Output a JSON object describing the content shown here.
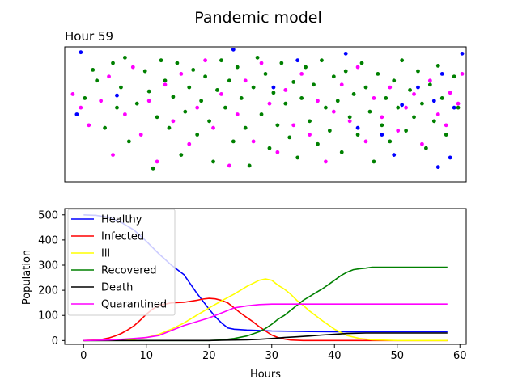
{
  "title": "Pandemic model",
  "chart_data": [
    {
      "type": "scatter",
      "title": "Hour 59",
      "xlim": [
        0,
        100
      ],
      "ylim": [
        0,
        100
      ],
      "axis_ticks": false,
      "groups": [
        {
          "name": "green",
          "color": "#008000",
          "points": [
            [
              5,
              62
            ],
            [
              7,
              83
            ],
            [
              8,
              75
            ],
            [
              10,
              40
            ],
            [
              12,
              88
            ],
            [
              13,
              55
            ],
            [
              14,
              70
            ],
            [
              15,
              92
            ],
            [
              16,
              30
            ],
            [
              18,
              58
            ],
            [
              20,
              82
            ],
            [
              21,
              67
            ],
            [
              22,
              10
            ],
            [
              23,
              48
            ],
            [
              24,
              90
            ],
            [
              25,
              75
            ],
            [
              26,
              40
            ],
            [
              27,
              63
            ],
            [
              28,
              88
            ],
            [
              29,
              20
            ],
            [
              30,
              52
            ],
            [
              31,
              70
            ],
            [
              32,
              83
            ],
            [
              33,
              35
            ],
            [
              34,
              60
            ],
            [
              35,
              78
            ],
            [
              36,
              45
            ],
            [
              37,
              15
            ],
            [
              38,
              68
            ],
            [
              39,
              90
            ],
            [
              40,
              55
            ],
            [
              41,
              75
            ],
            [
              42,
              30
            ],
            [
              43,
              85
            ],
            [
              44,
              62
            ],
            [
              45,
              40
            ],
            [
              46,
              12
            ],
            [
              47,
              70
            ],
            [
              48,
              92
            ],
            [
              49,
              50
            ],
            [
              50,
              80
            ],
            [
              51,
              25
            ],
            [
              52,
              66
            ],
            [
              53,
              42
            ],
            [
              54,
              88
            ],
            [
              55,
              58
            ],
            [
              56,
              33
            ],
            [
              57,
              74
            ],
            [
              58,
              18
            ],
            [
              59,
              62
            ],
            [
              60,
              85
            ],
            [
              61,
              45
            ],
            [
              62,
              72
            ],
            [
              63,
              28
            ],
            [
              64,
              90
            ],
            [
              65,
              55
            ],
            [
              66,
              38
            ],
            [
              67,
              78
            ],
            [
              68,
              60
            ],
            [
              69,
              22
            ],
            [
              70,
              82
            ],
            [
              71,
              48
            ],
            [
              72,
              65
            ],
            [
              73,
              35
            ],
            [
              74,
              88
            ],
            [
              75,
              70
            ],
            [
              76,
              52
            ],
            [
              77,
              15
            ],
            [
              78,
              80
            ],
            [
              79,
              42
            ],
            [
              80,
              62
            ],
            [
              81,
              30
            ],
            [
              82,
              75
            ],
            [
              83,
              55
            ],
            [
              84,
              90
            ],
            [
              85,
              38
            ],
            [
              86,
              68
            ],
            [
              87,
              48
            ],
            [
              88,
              82
            ],
            [
              89,
              58
            ],
            [
              90,
              25
            ],
            [
              91,
              72
            ],
            [
              92,
              45
            ],
            [
              93,
              86
            ],
            [
              94,
              62
            ],
            [
              95,
              35
            ],
            [
              97,
              78
            ],
            [
              98,
              55
            ]
          ]
        },
        {
          "name": "magenta",
          "color": "#ff00ff",
          "points": [
            [
              2,
              65
            ],
            [
              4,
              55
            ],
            [
              6,
              42
            ],
            [
              9,
              60
            ],
            [
              11,
              78
            ],
            [
              12,
              20
            ],
            [
              15,
              50
            ],
            [
              17,
              85
            ],
            [
              19,
              35
            ],
            [
              21,
              60
            ],
            [
              23,
              15
            ],
            [
              25,
              72
            ],
            [
              27,
              45
            ],
            [
              29,
              80
            ],
            [
              31,
              28
            ],
            [
              33,
              55
            ],
            [
              35,
              90
            ],
            [
              37,
              40
            ],
            [
              39,
              65
            ],
            [
              41,
              12
            ],
            [
              43,
              50
            ],
            [
              45,
              75
            ],
            [
              47,
              30
            ],
            [
              49,
              88
            ],
            [
              51,
              58
            ],
            [
              53,
              22
            ],
            [
              55,
              68
            ],
            [
              57,
              42
            ],
            [
              59,
              80
            ],
            [
              61,
              35
            ],
            [
              63,
              60
            ],
            [
              65,
              15
            ],
            [
              67,
              52
            ],
            [
              69,
              72
            ],
            [
              71,
              45
            ],
            [
              73,
              85
            ],
            [
              75,
              30
            ],
            [
              77,
              62
            ],
            [
              79,
              48
            ],
            [
              81,
              70
            ],
            [
              83,
              38
            ],
            [
              85,
              55
            ],
            [
              87,
              65
            ],
            [
              89,
              28
            ],
            [
              91,
              75
            ],
            [
              93,
              50
            ],
            [
              95,
              42
            ],
            [
              96,
              66
            ],
            [
              98,
              58
            ],
            [
              99,
              80
            ]
          ]
        },
        {
          "name": "blue",
          "color": "#0000ff",
          "points": [
            [
              3,
              50
            ],
            [
              4,
              96
            ],
            [
              13,
              64
            ],
            [
              42,
              98
            ],
            [
              52,
              70
            ],
            [
              58,
              90
            ],
            [
              70,
              95
            ],
            [
              73,
              40
            ],
            [
              79,
              35
            ],
            [
              82,
              20
            ],
            [
              84,
              57
            ],
            [
              88,
              70
            ],
            [
              92,
              60
            ],
            [
              93,
              11
            ],
            [
              94,
              80
            ],
            [
              96,
              18
            ],
            [
              97,
              55
            ],
            [
              99,
              95
            ]
          ]
        }
      ]
    },
    {
      "type": "line",
      "xlabel": "Hours",
      "ylabel": "Population",
      "xlim": [
        -3,
        61
      ],
      "ylim": [
        -15,
        525
      ],
      "xticks": [
        0,
        10,
        20,
        30,
        40,
        50,
        60
      ],
      "yticks": [
        0,
        100,
        200,
        300,
        400,
        500
      ],
      "legend": "upper-left",
      "series": [
        {
          "name": "Healthy",
          "color": "#0000ff",
          "x": [
            0,
            2,
            4,
            6,
            8,
            10,
            12,
            14,
            16,
            18,
            20,
            21,
            22,
            23,
            24,
            26,
            28,
            30,
            35,
            40,
            45,
            50,
            55,
            58
          ],
          "y": [
            500,
            498,
            490,
            470,
            440,
            395,
            345,
            300,
            262,
            190,
            125,
            95,
            70,
            50,
            45,
            42,
            40,
            38,
            36,
            35,
            35,
            35,
            35,
            35
          ]
        },
        {
          "name": "Infected",
          "color": "#ff0000",
          "x": [
            0,
            2,
            3,
            4,
            5,
            6,
            7,
            8,
            9,
            10,
            11,
            12,
            14,
            16,
            18,
            19,
            20,
            21,
            22,
            23,
            24,
            25,
            26,
            27,
            28,
            29,
            30,
            31,
            32,
            33,
            35,
            40,
            45,
            50,
            58
          ],
          "y": [
            0,
            2,
            5,
            10,
            18,
            28,
            42,
            58,
            80,
            105,
            125,
            140,
            150,
            152,
            160,
            165,
            168,
            166,
            160,
            150,
            130,
            110,
            92,
            75,
            55,
            38,
            22,
            12,
            6,
            2,
            0,
            0,
            0,
            0,
            0
          ]
        },
        {
          "name": "Ill",
          "color": "#ffff00",
          "x": [
            0,
            6,
            8,
            10,
            12,
            14,
            16,
            18,
            20,
            22,
            24,
            26,
            28,
            29,
            30,
            31,
            32,
            33,
            34,
            35,
            36,
            38,
            40,
            42,
            44,
            46,
            50,
            58
          ],
          "y": [
            0,
            2,
            5,
            12,
            25,
            45,
            70,
            100,
            130,
            158,
            185,
            215,
            240,
            245,
            240,
            220,
            205,
            185,
            160,
            140,
            118,
            80,
            45,
            20,
            8,
            3,
            0,
            0
          ]
        },
        {
          "name": "Recovered",
          "color": "#008000",
          "x": [
            0,
            20,
            22,
            24,
            26,
            28,
            29,
            30,
            31,
            32,
            33,
            34,
            35,
            36,
            37,
            38,
            39,
            40,
            41,
            42,
            43,
            44,
            45,
            46,
            50,
            58
          ],
          "y": [
            0,
            0,
            2,
            8,
            18,
            35,
            48,
            65,
            85,
            100,
            120,
            140,
            160,
            175,
            190,
            205,
            222,
            240,
            258,
            272,
            282,
            286,
            288,
            292,
            292,
            292
          ]
        },
        {
          "name": "Death",
          "color": "#000000",
          "x": [
            0,
            20,
            22,
            24,
            26,
            28,
            30,
            32,
            34,
            36,
            38,
            40,
            42,
            45,
            50,
            58
          ],
          "y": [
            0,
            0,
            1,
            2,
            3,
            5,
            8,
            12,
            15,
            18,
            22,
            25,
            28,
            30,
            30,
            30
          ]
        },
        {
          "name": "Quarantined",
          "color": "#ff00ff",
          "x": [
            0,
            4,
            6,
            8,
            10,
            12,
            14,
            16,
            18,
            20,
            22,
            24,
            26,
            28,
            30,
            35,
            40,
            45,
            50,
            58
          ],
          "y": [
            0,
            2,
            5,
            8,
            12,
            20,
            40,
            60,
            75,
            90,
            110,
            130,
            138,
            143,
            145,
            145,
            145,
            145,
            145,
            145
          ]
        }
      ]
    }
  ]
}
